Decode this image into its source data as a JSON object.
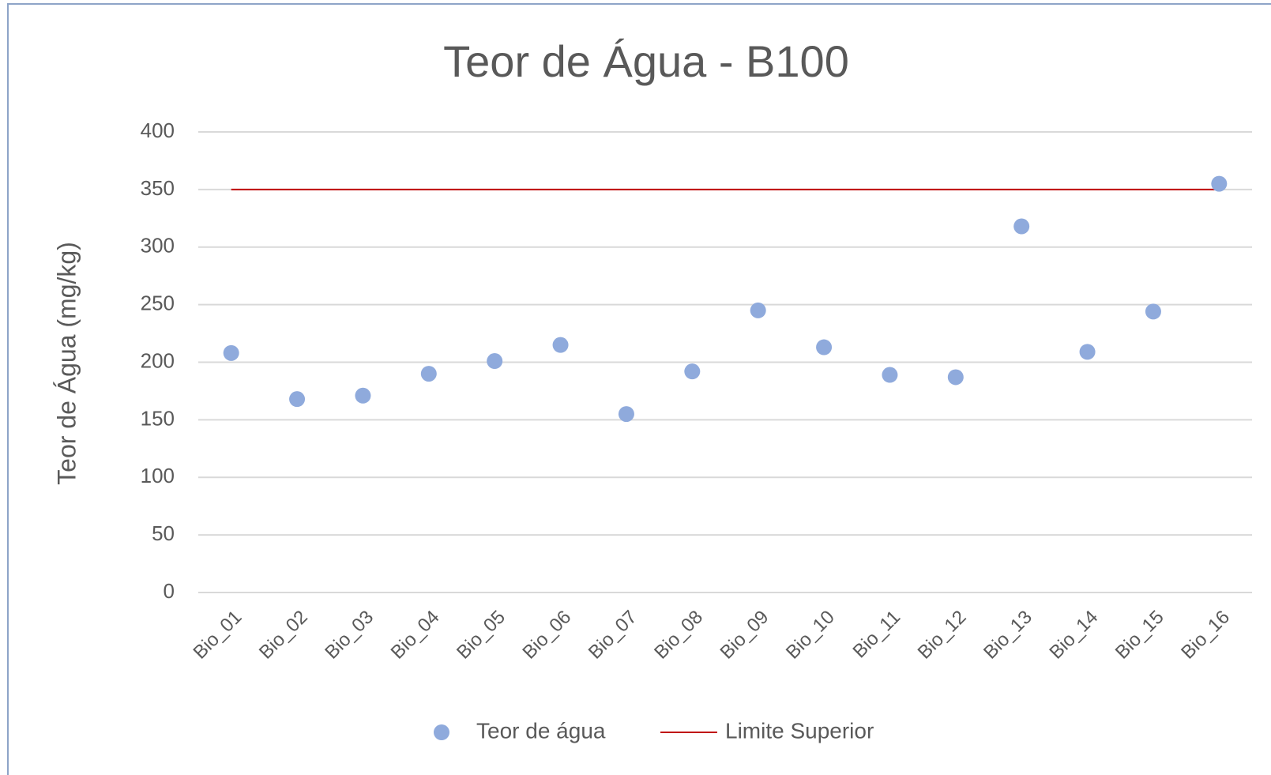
{
  "chart_data": {
    "type": "scatter",
    "title": "Teor de Água - B100",
    "ylabel": "Teor de Água (mg/kg)",
    "categories": [
      "Bio_01",
      "Bio_02",
      "Bio_03",
      "Bio_04",
      "Bio_05",
      "Bio_06",
      "Bio_07",
      "Bio_08",
      "Bio_09",
      "Bio_10",
      "Bio_11",
      "Bio_12",
      "Bio_13",
      "Bio_14",
      "Bio_15",
      "Bio_16"
    ],
    "series": [
      {
        "name": "Teor de água",
        "type": "scatter",
        "color": "#8faadc",
        "values": [
          208,
          168,
          171,
          190,
          201,
          215,
          155,
          192,
          245,
          213,
          189,
          187,
          318,
          209,
          244,
          355
        ]
      },
      {
        "name": "Limite Superior",
        "type": "line",
        "color": "#c00000",
        "values": [
          350,
          350,
          350,
          350,
          350,
          350,
          350,
          350,
          350,
          350,
          350,
          350,
          350,
          350,
          350,
          350
        ]
      }
    ],
    "ylim": [
      0,
      400
    ],
    "yticks": [
      0,
      50,
      100,
      150,
      200,
      250,
      300,
      350,
      400
    ],
    "grid": true,
    "legend": "bottom"
  }
}
